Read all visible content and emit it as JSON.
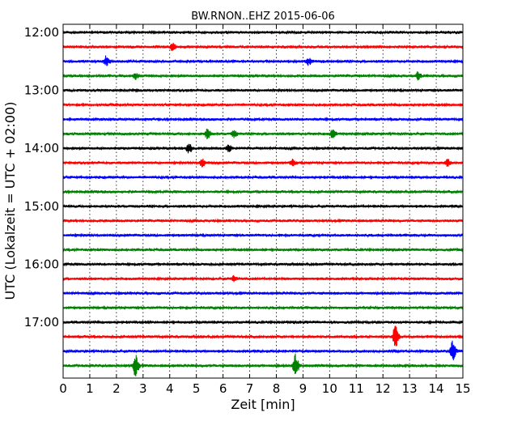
{
  "chart_data": {
    "type": "line",
    "title": "BW.RNON..EHZ 2015-06-06",
    "xlabel": "Zeit  [min]",
    "ylabel": "UTC (Lokalzeit = UTC + 02:00)",
    "xlim": [
      0,
      15
    ],
    "x_ticks": [
      "0",
      "1",
      "2",
      "3",
      "4",
      "5",
      "6",
      "7",
      "8",
      "9",
      "10",
      "11",
      "12",
      "13",
      "14",
      "15"
    ],
    "y_ticks": [
      "12:00",
      "13:00",
      "14:00",
      "15:00",
      "16:00",
      "17:00"
    ],
    "grid": "vertical dotted",
    "colors": [
      "#000000",
      "#ff0000",
      "#0000ff",
      "#008000"
    ],
    "traces": [
      {
        "start": "12:00",
        "color": "#000000",
        "events": []
      },
      {
        "start": "12:15",
        "color": "#ff0000",
        "events": [
          {
            "t": 4.1,
            "amp": 0.35
          }
        ]
      },
      {
        "start": "12:30",
        "color": "#0000ff",
        "events": [
          {
            "t": 1.6,
            "amp": 0.5
          },
          {
            "t": 9.2,
            "amp": 0.3
          }
        ]
      },
      {
        "start": "12:45",
        "color": "#008000",
        "events": [
          {
            "t": 2.7,
            "amp": 0.3
          },
          {
            "t": 13.3,
            "amp": 0.35
          }
        ]
      },
      {
        "start": "13:00",
        "color": "#000000",
        "events": []
      },
      {
        "start": "13:15",
        "color": "#ff0000",
        "events": []
      },
      {
        "start": "13:30",
        "color": "#0000ff",
        "events": []
      },
      {
        "start": "13:45",
        "color": "#008000",
        "events": [
          {
            "t": 5.4,
            "amp": 0.5
          },
          {
            "t": 6.4,
            "amp": 0.3
          },
          {
            "t": 10.1,
            "amp": 0.4
          }
        ]
      },
      {
        "start": "14:00",
        "color": "#000000",
        "events": [
          {
            "t": 4.7,
            "amp": 0.5
          },
          {
            "t": 6.2,
            "amp": 0.3
          }
        ]
      },
      {
        "start": "14:15",
        "color": "#ff0000",
        "events": [
          {
            "t": 5.2,
            "amp": 0.35
          },
          {
            "t": 8.6,
            "amp": 0.35
          },
          {
            "t": 14.4,
            "amp": 0.35
          }
        ]
      },
      {
        "start": "14:30",
        "color": "#0000ff",
        "events": []
      },
      {
        "start": "14:45",
        "color": "#008000",
        "events": []
      },
      {
        "start": "15:00",
        "color": "#000000",
        "events": []
      },
      {
        "start": "15:15",
        "color": "#ff0000",
        "events": []
      },
      {
        "start": "15:30",
        "color": "#0000ff",
        "events": []
      },
      {
        "start": "15:45",
        "color": "#008000",
        "events": []
      },
      {
        "start": "16:00",
        "color": "#000000",
        "events": []
      },
      {
        "start": "16:15",
        "color": "#ff0000",
        "events": [
          {
            "t": 6.4,
            "amp": 0.25
          }
        ]
      },
      {
        "start": "16:30",
        "color": "#0000ff",
        "events": []
      },
      {
        "start": "16:45",
        "color": "#008000",
        "events": []
      },
      {
        "start": "17:00",
        "color": "#000000",
        "events": []
      },
      {
        "start": "17:15",
        "color": "#ff0000",
        "events": [
          {
            "t": 12.45,
            "amp": 1.1
          }
        ]
      },
      {
        "start": "17:30",
        "color": "#0000ff",
        "events": [
          {
            "t": 14.6,
            "amp": 1.0
          }
        ]
      },
      {
        "start": "17:45",
        "color": "#008000",
        "events": [
          {
            "t": 2.7,
            "amp": 1.2
          },
          {
            "t": 8.7,
            "amp": 1.3
          }
        ]
      }
    ]
  }
}
